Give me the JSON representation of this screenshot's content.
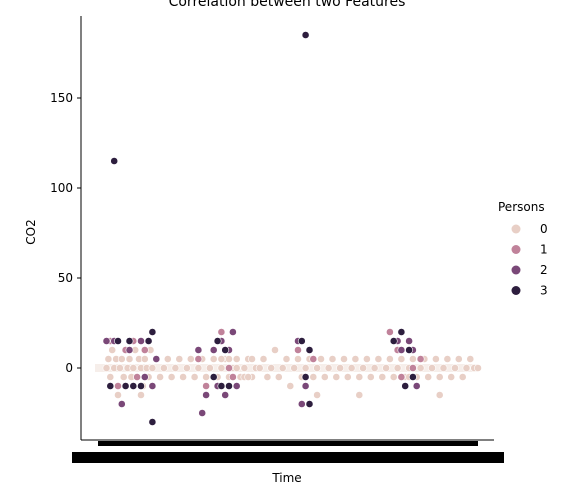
{
  "chart_data": {
    "type": "scatter",
    "title": "Correlation between two Features",
    "xlabel": "Time",
    "ylabel": "CO2",
    "ylim": [
      -38,
      190
    ],
    "yticks": [
      0,
      50,
      100,
      150
    ],
    "grid": false,
    "legend": {
      "title": "Persons",
      "placement": "right",
      "entries": [
        {
          "label": "0",
          "color": "#e8cfc6"
        },
        {
          "label": "1",
          "color": "#c0829a"
        },
        {
          "label": "2",
          "color": "#7a4878"
        },
        {
          "label": "3",
          "color": "#2d1e3e"
        }
      ]
    },
    "xrange": [
      0,
      100
    ],
    "series": [
      {
        "name": "0",
        "points": [
          [
            3,
            0
          ],
          [
            3.5,
            5
          ],
          [
            4,
            -5
          ],
          [
            4.5,
            10
          ],
          [
            5,
            0
          ],
          [
            5.5,
            5
          ],
          [
            6,
            -10
          ],
          [
            6.5,
            0
          ],
          [
            7,
            5
          ],
          [
            7.5,
            -5
          ],
          [
            8,
            10
          ],
          [
            8.5,
            0
          ],
          [
            9,
            5
          ],
          [
            9.5,
            -5
          ],
          [
            10,
            0
          ],
          [
            10.5,
            10
          ],
          [
            11,
            -5
          ],
          [
            11.5,
            5
          ],
          [
            12,
            0
          ],
          [
            12.5,
            -10
          ],
          [
            13,
            5
          ],
          [
            13.5,
            0
          ],
          [
            14,
            -5
          ],
          [
            14.5,
            10
          ],
          [
            15,
            0
          ],
          [
            16,
            5
          ],
          [
            17,
            -5
          ],
          [
            18,
            0
          ],
          [
            19,
            5
          ],
          [
            20,
            -5
          ],
          [
            21,
            0
          ],
          [
            22,
            5
          ],
          [
            23,
            -5
          ],
          [
            24,
            0
          ],
          [
            25,
            5
          ],
          [
            26,
            -5
          ],
          [
            27,
            0
          ],
          [
            28,
            5
          ],
          [
            29,
            -5
          ],
          [
            30,
            0
          ],
          [
            31,
            5
          ],
          [
            32,
            -5
          ],
          [
            33,
            0
          ],
          [
            34,
            5
          ],
          [
            35,
            -5
          ],
          [
            36,
            0
          ],
          [
            37,
            5
          ],
          [
            38,
            -5
          ],
          [
            39,
            0
          ],
          [
            40,
            5
          ],
          [
            41,
            -5
          ],
          [
            42,
            0
          ],
          [
            33,
            5
          ],
          [
            35,
            5
          ],
          [
            37,
            0
          ],
          [
            39,
            -5
          ],
          [
            41,
            5
          ],
          [
            43,
            0
          ],
          [
            44,
            5
          ],
          [
            45,
            -5
          ],
          [
            46,
            0
          ],
          [
            47,
            10
          ],
          [
            48,
            -5
          ],
          [
            49,
            0
          ],
          [
            50,
            5
          ],
          [
            51,
            -10
          ],
          [
            52,
            0
          ],
          [
            53,
            5
          ],
          [
            54,
            -5
          ],
          [
            55,
            0
          ],
          [
            56,
            5
          ],
          [
            57,
            -5
          ],
          [
            58,
            0
          ],
          [
            59,
            5
          ],
          [
            60,
            -5
          ],
          [
            61,
            0
          ],
          [
            62,
            5
          ],
          [
            63,
            -5
          ],
          [
            64,
            0
          ],
          [
            65,
            5
          ],
          [
            66,
            -5
          ],
          [
            67,
            0
          ],
          [
            68,
            5
          ],
          [
            69,
            -5
          ],
          [
            70,
            0
          ],
          [
            71,
            5
          ],
          [
            72,
            -5
          ],
          [
            73,
            0
          ],
          [
            74,
            5
          ],
          [
            75,
            -5
          ],
          [
            76,
            0
          ],
          [
            77,
            5
          ],
          [
            78,
            -5
          ],
          [
            79,
            0
          ],
          [
            80,
            5
          ],
          [
            81,
            -5
          ],
          [
            82,
            0
          ],
          [
            83,
            5
          ],
          [
            84,
            -5
          ],
          [
            85,
            0
          ],
          [
            86,
            5
          ],
          [
            87,
            -5
          ],
          [
            88,
            0
          ],
          [
            89,
            5
          ],
          [
            90,
            -5
          ],
          [
            91,
            0
          ],
          [
            92,
            5
          ],
          [
            93,
            -5
          ],
          [
            94,
            0
          ],
          [
            95,
            5
          ],
          [
            96,
            -5
          ],
          [
            97,
            0
          ],
          [
            98,
            5
          ],
          [
            99,
            0
          ],
          [
            100,
            0
          ],
          [
            6,
            -15
          ],
          [
            12,
            -15
          ],
          [
            26,
            -5
          ],
          [
            40,
            -5
          ],
          [
            58,
            -15
          ],
          [
            69,
            -15
          ],
          [
            82,
            -5
          ],
          [
            90,
            -15
          ]
        ]
      },
      {
        "name": "1",
        "points": [
          [
            4,
            15
          ],
          [
            6,
            -10
          ],
          [
            8,
            10
          ],
          [
            10,
            15
          ],
          [
            11,
            -5
          ],
          [
            13,
            10
          ],
          [
            27,
            5
          ],
          [
            29,
            -10
          ],
          [
            31,
            10
          ],
          [
            33,
            20
          ],
          [
            35,
            0
          ],
          [
            36,
            -5
          ],
          [
            53,
            10
          ],
          [
            55,
            -5
          ],
          [
            57,
            5
          ],
          [
            77,
            20
          ],
          [
            79,
            10
          ],
          [
            80,
            -5
          ],
          [
            82,
            15
          ],
          [
            83,
            0
          ],
          [
            85,
            5
          ]
        ]
      },
      {
        "name": "2",
        "points": [
          [
            3,
            15
          ],
          [
            4,
            -10
          ],
          [
            5,
            15
          ],
          [
            7,
            -20
          ],
          [
            9,
            10
          ],
          [
            10,
            -10
          ],
          [
            12,
            15
          ],
          [
            13,
            -5
          ],
          [
            14,
            15
          ],
          [
            15,
            -10
          ],
          [
            16,
            5
          ],
          [
            27,
            10
          ],
          [
            28,
            -25
          ],
          [
            29,
            -15
          ],
          [
            31,
            10
          ],
          [
            32,
            -10
          ],
          [
            33,
            15
          ],
          [
            34,
            -15
          ],
          [
            35,
            10
          ],
          [
            36,
            20
          ],
          [
            37,
            -10
          ],
          [
            53,
            15
          ],
          [
            54,
            -20
          ],
          [
            55,
            -10
          ],
          [
            56,
            -20
          ],
          [
            79,
            15
          ],
          [
            80,
            10
          ],
          [
            81,
            -10
          ],
          [
            82,
            15
          ],
          [
            83,
            10
          ],
          [
            84,
            -10
          ]
        ]
      },
      {
        "name": "3",
        "points": [
          [
            5,
            115
          ],
          [
            4,
            -10
          ],
          [
            6,
            15
          ],
          [
            8,
            -10
          ],
          [
            9,
            15
          ],
          [
            10,
            -10
          ],
          [
            12,
            -10
          ],
          [
            14,
            15
          ],
          [
            15,
            20
          ],
          [
            15,
            -30
          ],
          [
            31,
            -5
          ],
          [
            32,
            15
          ],
          [
            33,
            -10
          ],
          [
            34,
            10
          ],
          [
            35,
            -10
          ],
          [
            55,
            185
          ],
          [
            54,
            15
          ],
          [
            56,
            10
          ],
          [
            55,
            -5
          ],
          [
            56,
            -20
          ],
          [
            78,
            15
          ],
          [
            80,
            20
          ],
          [
            81,
            -10
          ],
          [
            82,
            10
          ],
          [
            83,
            -5
          ]
        ]
      }
    ]
  }
}
